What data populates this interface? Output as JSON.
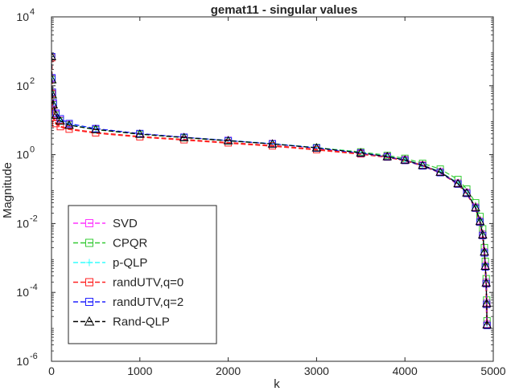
{
  "chart_data": {
    "type": "line",
    "title": "gemat11 - singular values",
    "xlabel": "k",
    "ylabel": "Magnitude",
    "xlim": [
      0,
      5000
    ],
    "ylim": [
      1e-06,
      10000.0
    ],
    "yscale": "log",
    "grid": false,
    "legend_position": "bottom-left",
    "xticks": [
      0,
      1000,
      2000,
      3000,
      4000,
      5000
    ],
    "xtick_labels": [
      "0",
      "1000",
      "2000",
      "3000",
      "4000",
      "5000"
    ],
    "yticks": [
      1e-06,
      0.0001,
      0.01,
      1.0,
      100.0,
      10000.0
    ],
    "ytick_labels": [
      {
        "base": "10",
        "exp": "-6"
      },
      {
        "base": "10",
        "exp": "-4"
      },
      {
        "base": "10",
        "exp": "-2"
      },
      {
        "base": "10",
        "exp": "0"
      },
      {
        "base": "10",
        "exp": "2"
      },
      {
        "base": "10",
        "exp": "4"
      }
    ],
    "series": [
      {
        "name": "SVD",
        "color": "#ff33ff",
        "marker": "square",
        "linestyle": "dashed",
        "x": [
          1,
          5,
          10,
          20,
          50,
          100,
          200,
          500,
          1000,
          1500,
          2000,
          2500,
          3000,
          3500,
          3800,
          4000,
          4200,
          4400,
          4600,
          4700,
          4800,
          4850,
          4880,
          4900,
          4910,
          4920,
          4925,
          4929
        ],
        "y": [
          700,
          160,
          60,
          30,
          15,
          10,
          7.5,
          5.5,
          4,
          3.2,
          2.6,
          2.1,
          1.6,
          1.15,
          0.9,
          0.72,
          0.5,
          0.32,
          0.15,
          0.08,
          0.03,
          0.012,
          0.005,
          0.0015,
          0.0006,
          0.0002,
          5e-05,
          1.2e-05
        ]
      },
      {
        "name": "CPQR",
        "color": "#33cc33",
        "marker": "square",
        "linestyle": "dashed",
        "x": [
          1,
          5,
          10,
          20,
          50,
          100,
          200,
          500,
          1000,
          1500,
          2000,
          2500,
          3000,
          3500,
          3800,
          4000,
          4200,
          4400,
          4600,
          4700,
          4800,
          4850,
          4880,
          4900,
          4910,
          4920,
          4925,
          4929
        ],
        "y": [
          700,
          150,
          55,
          28,
          14,
          9.5,
          7.2,
          5.3,
          3.9,
          3.1,
          2.5,
          2.05,
          1.6,
          1.2,
          0.95,
          0.78,
          0.56,
          0.38,
          0.19,
          0.1,
          0.04,
          0.016,
          0.007,
          0.002,
          0.0008,
          0.00025,
          6e-05,
          1.5e-05
        ]
      },
      {
        "name": "p-QLP",
        "color": "#33ffff",
        "marker": "plus",
        "linestyle": "dashed",
        "x": [
          1,
          5,
          10,
          20,
          50,
          100,
          200,
          500,
          1000,
          1500,
          2000,
          2500,
          3000,
          3500,
          3800,
          4000,
          4200,
          4400,
          4600,
          4700,
          4800,
          4850,
          4880,
          4900,
          4910,
          4920,
          4925,
          4929
        ],
        "y": [
          700,
          160,
          60,
          30,
          15,
          10,
          7.5,
          5.5,
          4,
          3.2,
          2.6,
          2.1,
          1.6,
          1.15,
          0.9,
          0.72,
          0.5,
          0.32,
          0.15,
          0.08,
          0.03,
          0.012,
          0.005,
          0.0015,
          0.0006,
          0.0002,
          5e-05,
          1.2e-05
        ]
      },
      {
        "name": "randUTV,q=0",
        "color": "#ff2222",
        "marker": "square",
        "linestyle": "dashed",
        "x": [
          1,
          5,
          10,
          20,
          50,
          100,
          200,
          500,
          1000,
          1500,
          2000,
          2500,
          3000,
          3500,
          3800,
          4000,
          4200,
          4400,
          4600,
          4700,
          4800,
          4850,
          4880,
          4900,
          4910,
          4920,
          4925,
          4929
        ],
        "y": [
          650,
          60,
          20,
          12,
          8,
          6.5,
          5.5,
          4.3,
          3.3,
          2.7,
          2.2,
          1.8,
          1.4,
          1.05,
          0.85,
          0.68,
          0.48,
          0.3,
          0.14,
          0.075,
          0.028,
          0.011,
          0.0045,
          0.0014,
          0.00055,
          0.00018,
          4.5e-05,
          1.1e-05
        ]
      },
      {
        "name": "randUTV,q=2",
        "color": "#2222ff",
        "marker": "square",
        "linestyle": "dashed",
        "x": [
          1,
          5,
          10,
          20,
          50,
          100,
          200,
          500,
          1000,
          1500,
          2000,
          2500,
          3000,
          3500,
          3800,
          4000,
          4200,
          4400,
          4600,
          4700,
          4800,
          4850,
          4880,
          4900,
          4910,
          4920,
          4925,
          4929
        ],
        "y": [
          700,
          170,
          65,
          32,
          16,
          11,
          8,
          5.7,
          4.1,
          3.2,
          2.55,
          2.05,
          1.55,
          1.1,
          0.86,
          0.68,
          0.47,
          0.3,
          0.14,
          0.075,
          0.028,
          0.011,
          0.0045,
          0.0014,
          0.00055,
          0.00018,
          4.5e-05,
          1.1e-05
        ]
      },
      {
        "name": "Rand-QLP",
        "color": "#000000",
        "marker": "triangle",
        "linestyle": "dashed",
        "x": [
          1,
          5,
          10,
          20,
          50,
          100,
          200,
          500,
          1000,
          1500,
          2000,
          2500,
          3000,
          3500,
          3800,
          4000,
          4200,
          4400,
          4600,
          4700,
          4800,
          4850,
          4880,
          4900,
          4910,
          4920,
          4925,
          4929
        ],
        "y": [
          700,
          150,
          55,
          28,
          14,
          9.5,
          7.2,
          5.4,
          3.95,
          3.15,
          2.55,
          2.05,
          1.58,
          1.13,
          0.88,
          0.7,
          0.49,
          0.31,
          0.145,
          0.078,
          0.029,
          0.0115,
          0.0047,
          0.0015,
          0.00058,
          0.00019,
          4.8e-05,
          1.15e-05
        ]
      }
    ]
  }
}
